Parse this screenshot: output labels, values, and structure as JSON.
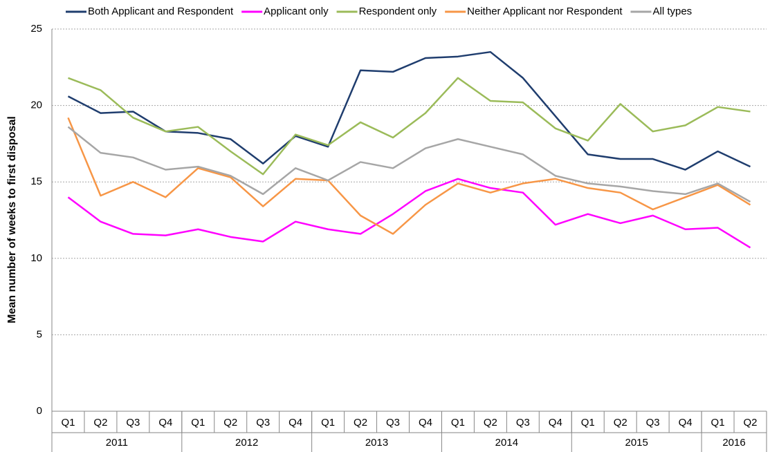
{
  "chart_data": {
    "type": "line",
    "y_label": "Mean number of weeks to first disposal",
    "categories": [
      "Q1",
      "Q2",
      "Q3",
      "Q4",
      "Q1",
      "Q2",
      "Q3",
      "Q4",
      "Q1",
      "Q2",
      "Q3",
      "Q4",
      "Q1",
      "Q2",
      "Q3",
      "Q4",
      "Q1",
      "Q2",
      "Q3",
      "Q4",
      "Q1",
      "Q2"
    ],
    "x_groups": [
      {
        "label": "2011",
        "count": 4
      },
      {
        "label": "2012",
        "count": 4
      },
      {
        "label": "2013",
        "count": 4
      },
      {
        "label": "2014",
        "count": 4
      },
      {
        "label": "2015",
        "count": 4
      },
      {
        "label": "2016",
        "count": 2
      }
    ],
    "ylim": [
      0,
      25
    ],
    "yticks": [
      0,
      5,
      10,
      15,
      20,
      25
    ],
    "grid": true,
    "legend": "top",
    "series": [
      {
        "name": "Both Applicant and Respondent",
        "color": "#1f3d6e",
        "values": [
          20.6,
          19.5,
          19.6,
          18.3,
          18.2,
          17.8,
          16.2,
          18.0,
          17.3,
          22.3,
          22.2,
          23.1,
          23.2,
          23.5,
          21.8,
          19.3,
          16.8,
          16.5,
          16.5,
          15.8,
          17.0,
          16.0
        ]
      },
      {
        "name": "Applicant only",
        "color": "#ff00ff",
        "values": [
          14.0,
          12.4,
          11.6,
          11.5,
          11.9,
          11.4,
          11.1,
          12.4,
          11.9,
          11.6,
          12.9,
          14.4,
          15.2,
          14.6,
          14.3,
          12.2,
          12.9,
          12.3,
          12.8,
          11.9,
          12.0,
          10.7
        ]
      },
      {
        "name": "Respondent only",
        "color": "#9bbb59",
        "values": [
          21.8,
          21.0,
          19.2,
          18.3,
          18.6,
          17.0,
          15.5,
          18.1,
          17.4,
          18.9,
          17.9,
          19.5,
          21.8,
          20.3,
          20.2,
          18.5,
          17.7,
          20.1,
          18.3,
          18.7,
          19.9,
          19.6
        ]
      },
      {
        "name": "Neither Applicant nor Respondent",
        "color": "#f79646",
        "values": [
          19.2,
          14.1,
          15.0,
          14.0,
          15.9,
          15.3,
          13.4,
          15.2,
          15.1,
          12.8,
          11.6,
          13.5,
          14.9,
          14.3,
          14.9,
          15.2,
          14.6,
          14.3,
          13.2,
          14.0,
          14.8,
          13.5
        ]
      },
      {
        "name": "All types",
        "color": "#a6a6a6",
        "values": [
          18.6,
          16.9,
          16.6,
          15.8,
          16.0,
          15.4,
          14.2,
          15.9,
          15.1,
          16.3,
          15.9,
          17.2,
          17.8,
          17.3,
          16.8,
          15.4,
          14.9,
          14.7,
          14.4,
          14.2,
          14.9,
          13.7
        ]
      }
    ]
  }
}
